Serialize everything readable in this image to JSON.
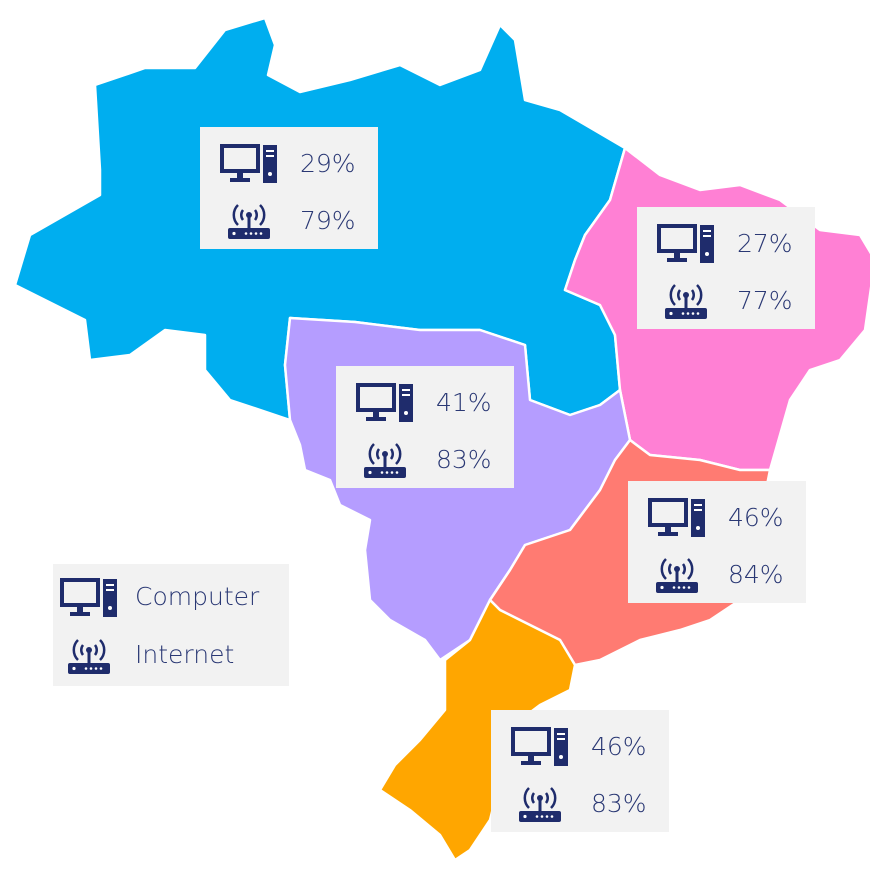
{
  "regions": [
    {
      "color": "#00aeef",
      "computer": "29%",
      "internet": "79%"
    },
    {
      "color": "#ff80d4",
      "computer": "27%",
      "internet": "77%"
    },
    {
      "color": "#b59dff",
      "computer": "41%",
      "internet": "83%"
    },
    {
      "color": "#ff7b72",
      "computer": "46%",
      "internet": "84%"
    },
    {
      "color": "#ffa600",
      "computer": "46%",
      "internet": "83%"
    }
  ],
  "legend": {
    "computer": "Computer",
    "internet": "Internet"
  }
}
